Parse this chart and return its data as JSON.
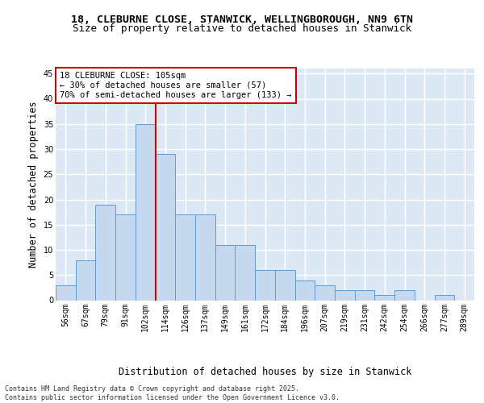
{
  "title_line1": "18, CLEBURNE CLOSE, STANWICK, WELLINGBOROUGH, NN9 6TN",
  "title_line2": "Size of property relative to detached houses in Stanwick",
  "xlabel": "Distribution of detached houses by size in Stanwick",
  "ylabel": "Number of detached properties",
  "categories": [
    "56sqm",
    "67sqm",
    "79sqm",
    "91sqm",
    "102sqm",
    "114sqm",
    "126sqm",
    "137sqm",
    "149sqm",
    "161sqm",
    "172sqm",
    "184sqm",
    "196sqm",
    "207sqm",
    "219sqm",
    "231sqm",
    "242sqm",
    "254sqm",
    "266sqm",
    "277sqm",
    "289sqm"
  ],
  "values": [
    3,
    8,
    19,
    17,
    35,
    29,
    17,
    17,
    11,
    11,
    6,
    6,
    4,
    3,
    2,
    2,
    1,
    2,
    0,
    1,
    0
  ],
  "bar_color": "#c5d8ed",
  "bar_edge_color": "#5b9bd5",
  "background_color": "#dce9f5",
  "grid_color": "#ffffff",
  "vline_color": "#cc0000",
  "annotation_text": "18 CLEBURNE CLOSE: 105sqm\n← 30% of detached houses are smaller (57)\n70% of semi-detached houses are larger (133) →",
  "annotation_box_color": "#ffffff",
  "annotation_box_edge_color": "#cc0000",
  "ylim": [
    0,
    46
  ],
  "yticks": [
    0,
    5,
    10,
    15,
    20,
    25,
    30,
    35,
    40,
    45
  ],
  "footer_text": "Contains HM Land Registry data © Crown copyright and database right 2025.\nContains public sector information licensed under the Open Government Licence v3.0.",
  "title_fontsize": 9.5,
  "subtitle_fontsize": 9,
  "axis_label_fontsize": 8.5,
  "tick_fontsize": 7,
  "annotation_fontsize": 7.5,
  "footer_fontsize": 6
}
